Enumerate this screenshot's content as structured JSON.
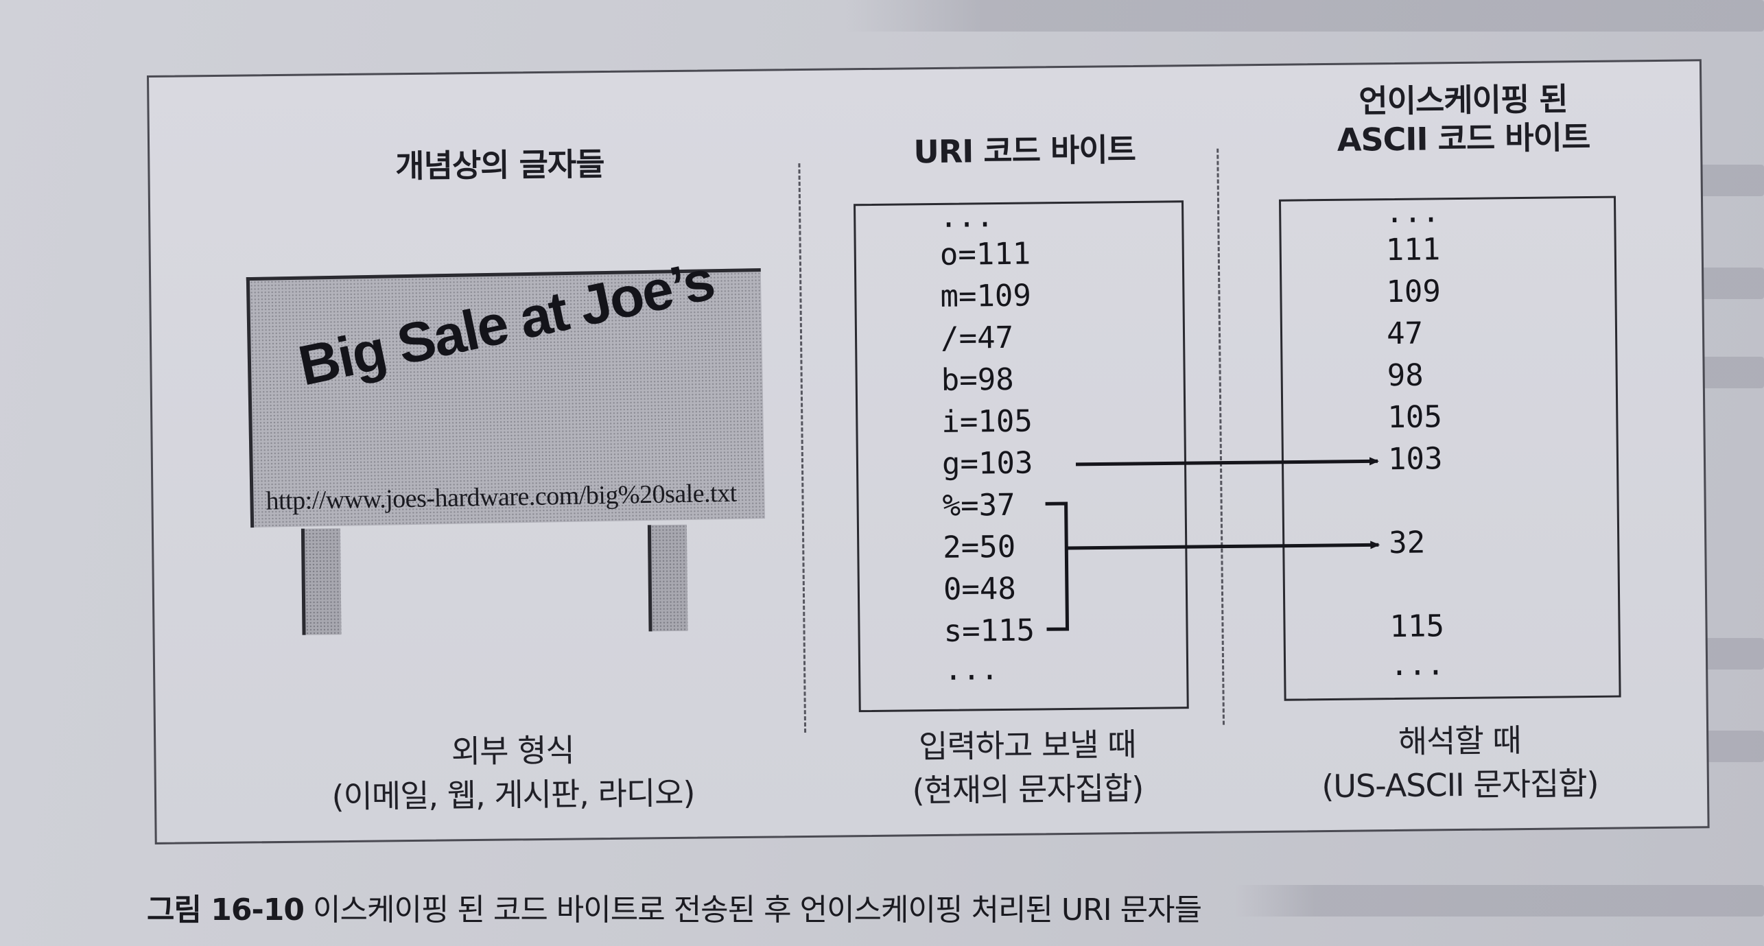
{
  "figure": {
    "columns": [
      {
        "heading": "개념상의 글자들",
        "bottom_line1": "외부 형식",
        "bottom_line2": "(이메일, 웹, 게시판, 라디오)"
      },
      {
        "heading": "URI 코드 바이트",
        "bottom_line1": "입력하고 보낼 때",
        "bottom_line2": "(현재의 문자집합)"
      },
      {
        "heading_line1": "언이스케이핑 된",
        "heading_line2": "ASCII 코드 바이트",
        "bottom_line1": "해석할 때",
        "bottom_line2": "(US-ASCII 문자집합)"
      }
    ],
    "billboard": {
      "slogan": "Big Sale at Joe’s",
      "url": "http://www.joes-hardware.com/big%20sale.txt"
    },
    "uri_bytes": [
      "...",
      "o=111",
      "m=109",
      "/=47",
      "b=98",
      "i=105",
      "g=103",
      "%=37",
      "2=50",
      "0=48",
      "s=115",
      "..."
    ],
    "ascii_bytes": [
      "...",
      "111",
      "109",
      "47",
      "98",
      "105",
      "103",
      "32",
      "115",
      "..."
    ]
  },
  "caption": {
    "label": "그림 16-10",
    "text": " 이스케이핑 된 코드 바이트로 전송된 후 언이스케이핑 처리된 URI 문자들"
  }
}
